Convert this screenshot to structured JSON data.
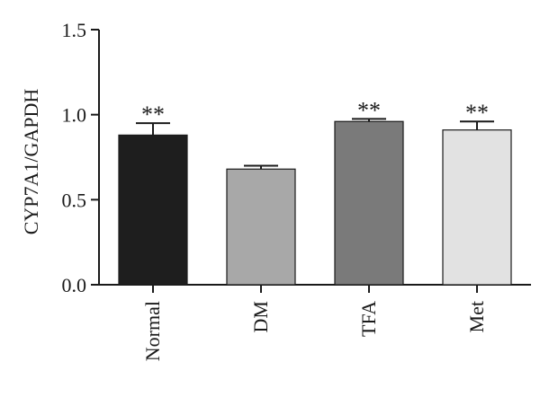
{
  "chart_data": {
    "type": "bar",
    "title": "",
    "xlabel": "",
    "ylabel": "CYP7A1/GAPDH",
    "ylim": [
      0,
      1.5
    ],
    "yticks": [
      0.0,
      0.5,
      1.0,
      1.5
    ],
    "ytick_labels": [
      "0.0",
      "0.5",
      "1.0",
      "1.5"
    ],
    "categories": [
      "Normal",
      "DM",
      "TFA",
      "Met"
    ],
    "values": [
      0.88,
      0.68,
      0.96,
      0.91
    ],
    "errors": [
      0.07,
      0.02,
      0.015,
      0.05
    ],
    "colors": [
      "#1e1e1e",
      "#a8a8a8",
      "#7a7a7a",
      "#e2e2e2"
    ],
    "annotations": [
      "**",
      "",
      "**",
      "**"
    ],
    "grid": false
  }
}
